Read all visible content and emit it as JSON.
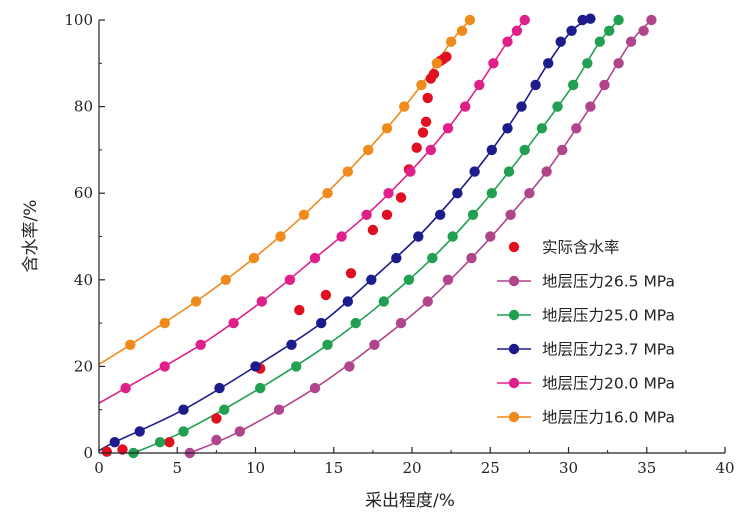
{
  "chart_data": {
    "type": "scatter",
    "title": "",
    "xlabel": "采出程度/%",
    "ylabel": "含水率/%",
    "xlim": [
      0,
      40
    ],
    "ylim": [
      0,
      100
    ],
    "xticks": [
      "0",
      "5",
      "10",
      "15",
      "20",
      "25",
      "30",
      "35",
      "40"
    ],
    "yticks": [
      "0",
      "20",
      "40",
      "60",
      "80",
      "100"
    ],
    "grid": false,
    "legend_position": "bottom-right",
    "series": [
      {
        "name": "实际含水率",
        "color": "#e01020",
        "style": "markers",
        "x": [
          0.5,
          1.5,
          4.5,
          7.5,
          10.3,
          12.8,
          14.5,
          16.1,
          17.5,
          18.4,
          19.3,
          19.8,
          20.3,
          20.7,
          20.9,
          21.0,
          21.2,
          21.4,
          21.6,
          21.8,
          22.0,
          22.2
        ],
        "y": [
          0.3,
          0.8,
          2.5,
          8,
          19.5,
          33,
          36.5,
          41.5,
          51.5,
          55,
          59,
          65.5,
          70.5,
          74,
          76.5,
          82,
          86.5,
          87.5,
          90,
          90.5,
          91,
          91.5
        ]
      },
      {
        "name": "地层压力26.5 MPa",
        "color": "#b0458c",
        "style": "line+markers",
        "x": [
          5.8,
          7.5,
          9.0,
          11.5,
          13.8,
          16.0,
          17.6,
          19.3,
          21.0,
          22.3,
          23.8,
          25.0,
          26.3,
          27.5,
          28.6,
          29.6,
          30.5,
          31.4,
          32.3,
          33.2,
          34.0,
          34.8,
          35.3
        ],
        "y": [
          0,
          3,
          5,
          10,
          15,
          20,
          25,
          30,
          35,
          40,
          45,
          50,
          55,
          60,
          65,
          70,
          75,
          80,
          85,
          90,
          95,
          97.5,
          100
        ]
      },
      {
        "name": "地层压力25.0 MPa",
        "color": "#20a050",
        "style": "line+markers",
        "x": [
          2.2,
          3.9,
          5.4,
          8.0,
          10.3,
          12.6,
          14.6,
          16.4,
          18.2,
          19.8,
          21.3,
          22.6,
          23.9,
          25.1,
          26.2,
          27.2,
          28.3,
          29.3,
          30.3,
          31.2,
          32.0,
          32.6,
          33.2
        ],
        "y": [
          0,
          2.5,
          5,
          10,
          15,
          20,
          25,
          30,
          35,
          40,
          45,
          50,
          55,
          60,
          65,
          70,
          75,
          80,
          85,
          90,
          95,
          97.5,
          100
        ]
      },
      {
        "name": "地层压力23.7 MPa",
        "color": "#1c1c8c",
        "style": "line+markers",
        "x": [
          1.0,
          2.6,
          5.4,
          7.7,
          10.0,
          12.3,
          14.2,
          15.9,
          17.4,
          19.0,
          20.4,
          21.8,
          22.9,
          24.0,
          25.1,
          26.1,
          27.0,
          27.9,
          28.7,
          29.5,
          30.2,
          30.9,
          31.4
        ],
        "y": [
          2.5,
          5,
          10,
          15,
          20,
          25,
          30,
          35,
          40,
          45,
          50,
          55,
          60,
          65,
          70,
          75,
          80,
          85,
          90,
          95,
          97.5,
          100,
          100.3
        ]
      },
      {
        "name": "地层压力20.0 MPa",
        "color": "#e0208a",
        "style": "line+markers",
        "x": [
          1.7,
          4.2,
          6.5,
          8.6,
          10.4,
          12.2,
          13.8,
          15.5,
          17.1,
          18.5,
          19.9,
          21.2,
          22.3,
          23.4,
          24.3,
          25.2,
          26.1,
          26.7,
          27.2
        ],
        "y": [
          15,
          20,
          25,
          30,
          35,
          40,
          45,
          50,
          55,
          60,
          65,
          70,
          75,
          80,
          85,
          90,
          95,
          97.5,
          100
        ]
      },
      {
        "name": "地层压力16.0 MPa",
        "color": "#f08a1a",
        "style": "line+markers",
        "x": [
          2.0,
          4.2,
          6.2,
          8.1,
          9.9,
          11.6,
          13.1,
          14.6,
          15.9,
          17.2,
          18.4,
          19.5,
          20.6,
          21.6,
          22.5,
          23.2,
          23.7
        ],
        "y": [
          25,
          30,
          35,
          40,
          45,
          50,
          55,
          60,
          65,
          70,
          75,
          80,
          85,
          90,
          95,
          97.5,
          100
        ]
      }
    ],
    "curves": [
      {
        "series": "地层压力26.5 MPa",
        "color": "#b0458c",
        "x": [
          5.8,
          9.0,
          13.8,
          17.6,
          21.0,
          23.8,
          26.3,
          28.6,
          30.5,
          32.3,
          34.0,
          35.3
        ],
        "y": [
          0,
          5,
          15,
          25,
          35,
          45,
          55,
          65,
          75,
          85,
          95,
          100
        ]
      },
      {
        "series": "地层压力25.0 MPa",
        "color": "#20a050",
        "x": [
          2.2,
          5.4,
          10.3,
          14.6,
          18.2,
          21.3,
          23.9,
          26.2,
          28.3,
          30.3,
          32.0,
          33.2
        ],
        "y": [
          0,
          5,
          15,
          25,
          35,
          45,
          55,
          65,
          75,
          85,
          95,
          100
        ]
      },
      {
        "series": "地层压力23.7 MPa",
        "color": "#1c1c8c",
        "x": [
          0.0,
          1.0,
          5.4,
          10.0,
          14.2,
          17.4,
          20.4,
          22.9,
          25.1,
          27.0,
          28.7,
          30.2,
          31.4
        ],
        "y": [
          0.5,
          2.5,
          10,
          20,
          30,
          40,
          50,
          60,
          70,
          80,
          90,
          97.5,
          100.3
        ]
      },
      {
        "series": "地层压力20.0 MPa",
        "color": "#e0208a",
        "x": [
          0.0,
          1.7,
          6.5,
          10.4,
          13.8,
          17.1,
          19.9,
          22.3,
          24.3,
          26.1,
          27.2
        ],
        "y": [
          11.5,
          15,
          25,
          35,
          45,
          55,
          65,
          75,
          85,
          95,
          100
        ]
      },
      {
        "series": "地层压力16.0 MPa",
        "color": "#f08a1a",
        "x": [
          0.0,
          2.0,
          6.2,
          9.9,
          13.1,
          15.9,
          18.4,
          20.6,
          22.5,
          23.7
        ],
        "y": [
          20.5,
          25,
          35,
          45,
          55,
          65,
          75,
          85,
          95,
          100
        ]
      }
    ]
  }
}
